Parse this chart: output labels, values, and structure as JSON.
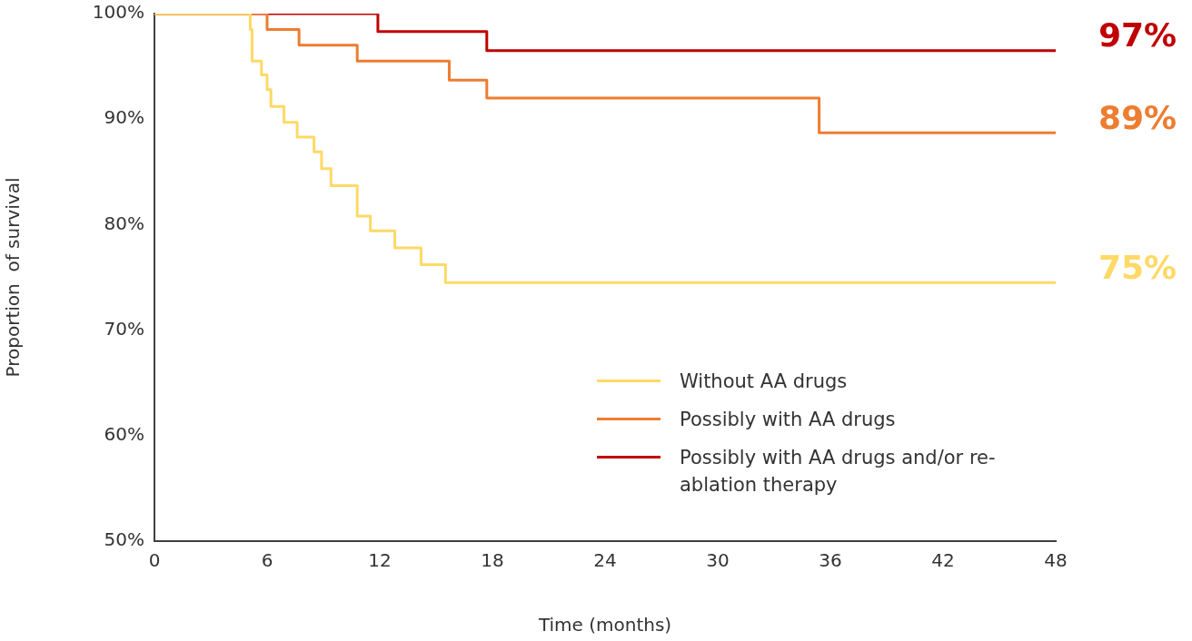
{
  "chart_data": {
    "type": "step",
    "xlabel": "Time (months)",
    "ylabel": "Proportion  of survival",
    "xlim": [
      0,
      48
    ],
    "xticks": [
      0,
      6,
      12,
      18,
      24,
      30,
      36,
      42,
      48
    ],
    "ylim": [
      50,
      100
    ],
    "yticks": [
      {
        "value": 50,
        "label": "50%"
      },
      {
        "value": 60,
        "label": "60%"
      },
      {
        "value": 70,
        "label": "70%"
      },
      {
        "value": 80,
        "label": "80%"
      },
      {
        "value": 90,
        "label": "90%"
      },
      {
        "value": 100,
        "label": "100%"
      }
    ],
    "grid": false,
    "legend": "bottom right",
    "marker": "none",
    "line_style": "solid",
    "series": [
      {
        "name": "Without AA drugs",
        "color": "#ffd966",
        "x": [
          0,
          5.1,
          5.2,
          5.7,
          6.0,
          6.2,
          6.9,
          7.6,
          8.5,
          8.9,
          9.4,
          10.8,
          11.5,
          12.8,
          14.2,
          15.5,
          48
        ],
        "values": [
          100,
          98.5,
          95.5,
          94.2,
          92.8,
          91.2,
          89.7,
          88.3,
          86.9,
          85.3,
          83.7,
          80.8,
          79.4,
          77.8,
          76.2,
          74.5,
          74.5
        ]
      },
      {
        "name": "Possibly with AA drugs",
        "color": "#ed7d31",
        "x": [
          0,
          6.0,
          7.7,
          10.8,
          15.7,
          17.7,
          35.4,
          48
        ],
        "values": [
          100,
          98.5,
          97.0,
          95.5,
          93.7,
          92.0,
          88.7,
          88.7
        ]
      },
      {
        "name": "Possibly with AA  drugs and/or re-ablation therapy",
        "color": "#c00000",
        "x": [
          0,
          11.9,
          17.7,
          48
        ],
        "values": [
          100,
          98.3,
          96.5,
          96.5
        ]
      }
    ],
    "annotations": [
      "75%",
      "89%",
      "97%"
    ]
  }
}
